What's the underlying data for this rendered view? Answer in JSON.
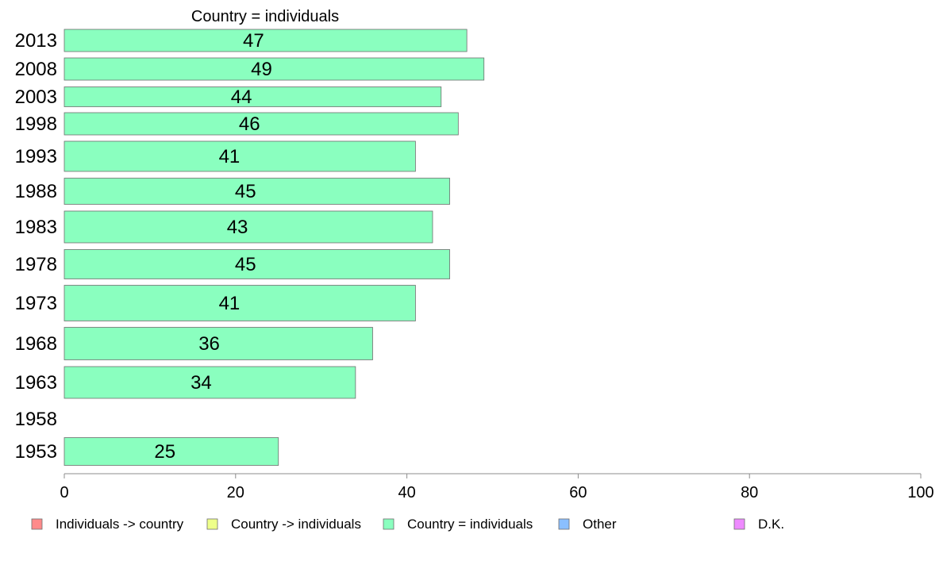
{
  "chart_data": {
    "type": "bar",
    "orientation": "horizontal",
    "title": "Country = individuals",
    "xlabel": "",
    "ylabel": "",
    "xlim": [
      0,
      100
    ],
    "x_ticks": [
      "0",
      "20",
      "40",
      "60",
      "80",
      "100"
    ],
    "grid": false,
    "categories": [
      "2013",
      "2008",
      "2003",
      "1998",
      "1993",
      "1988",
      "1983",
      "1978",
      "1973",
      "1968",
      "1963",
      "1958",
      "1953"
    ],
    "series": [
      {
        "name": "Country = individuals",
        "color": "#8affbf",
        "values": [
          47,
          49,
          44,
          46,
          41,
          45,
          43,
          45,
          41,
          36,
          34,
          null,
          25
        ],
        "labels": [
          "47",
          "49",
          "44",
          "46",
          "41",
          "45",
          "43",
          "45",
          "41",
          "36",
          "34",
          "",
          "25"
        ]
      }
    ],
    "legend": {
      "placement": "bottom",
      "items": [
        {
          "label": "Individuals -> country",
          "color": "#ff8a8a"
        },
        {
          "label": "Country -> individuals",
          "color": "#eeff8a"
        },
        {
          "label": "Country = individuals",
          "color": "#8affbf"
        },
        {
          "label": "Other",
          "color": "#8abfff"
        },
        {
          "label": "D.K.",
          "color": "#ee8aff"
        }
      ]
    }
  }
}
